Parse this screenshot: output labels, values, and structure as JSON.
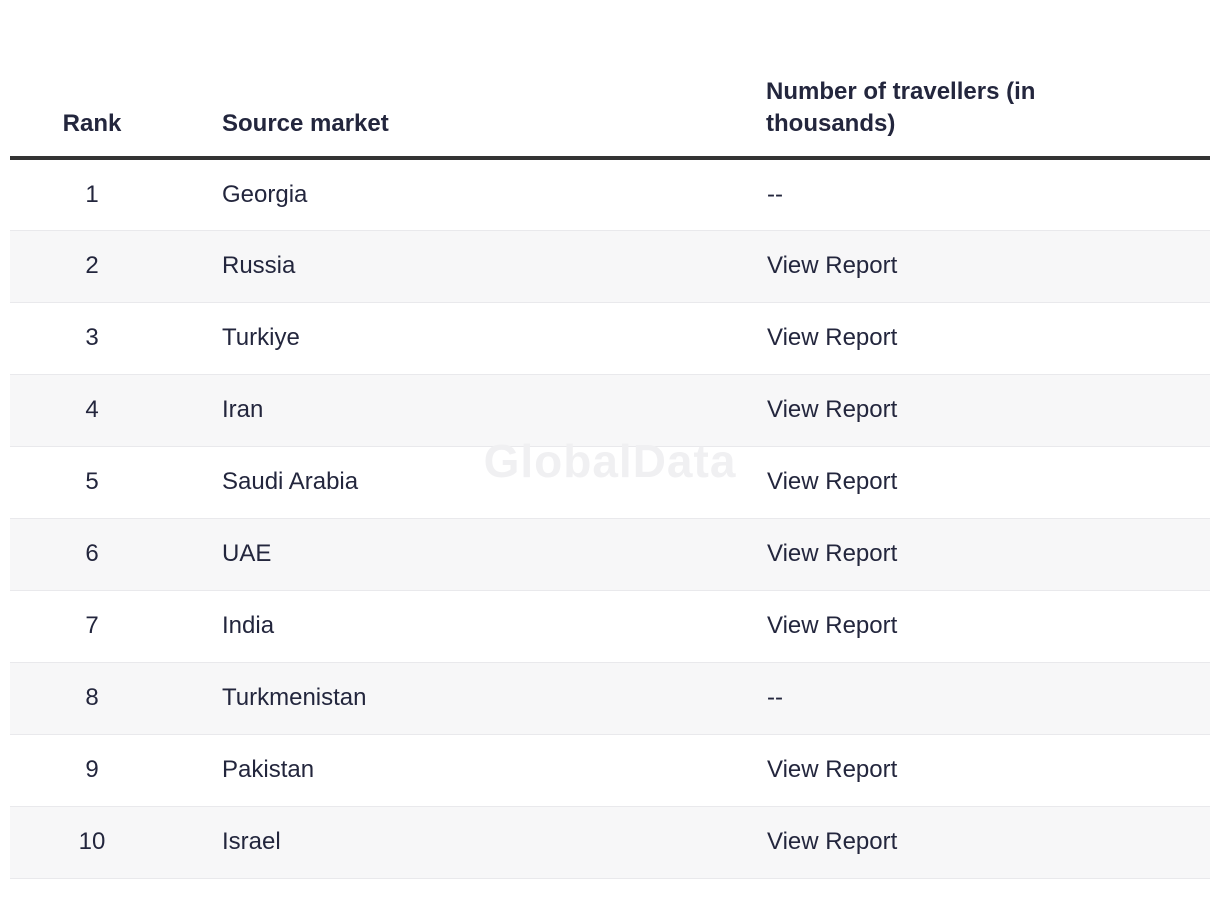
{
  "watermark": "GlobalData",
  "colors": {
    "text": "#23263d",
    "header_rule": "#333333",
    "stripe": "#f7f7f8",
    "row_border": "#e9e9ec",
    "watermark": "#f0f0f2"
  },
  "table": {
    "columns": [
      {
        "label": "Rank"
      },
      {
        "label": "Source market"
      },
      {
        "label": "Number of travellers (in thousands)"
      }
    ],
    "no_data_text": "--",
    "link_text": "View Report",
    "rows": [
      {
        "rank": "1",
        "market": "Georgia",
        "value": "--",
        "is_link": false
      },
      {
        "rank": "2",
        "market": "Russia",
        "value": "View Report",
        "is_link": true
      },
      {
        "rank": "3",
        "market": "Turkiye",
        "value": "View Report",
        "is_link": true
      },
      {
        "rank": "4",
        "market": "Iran",
        "value": "View Report",
        "is_link": true
      },
      {
        "rank": "5",
        "market": "Saudi Arabia",
        "value": "View Report",
        "is_link": true
      },
      {
        "rank": "6",
        "market": "UAE",
        "value": "View Report",
        "is_link": true
      },
      {
        "rank": "7",
        "market": "India",
        "value": "View Report",
        "is_link": true
      },
      {
        "rank": "8",
        "market": "Turkmenistan",
        "value": "--",
        "is_link": false
      },
      {
        "rank": "9",
        "market": "Pakistan",
        "value": "View Report",
        "is_link": true
      },
      {
        "rank": "10",
        "market": "Israel",
        "value": "View Report",
        "is_link": true
      }
    ]
  }
}
